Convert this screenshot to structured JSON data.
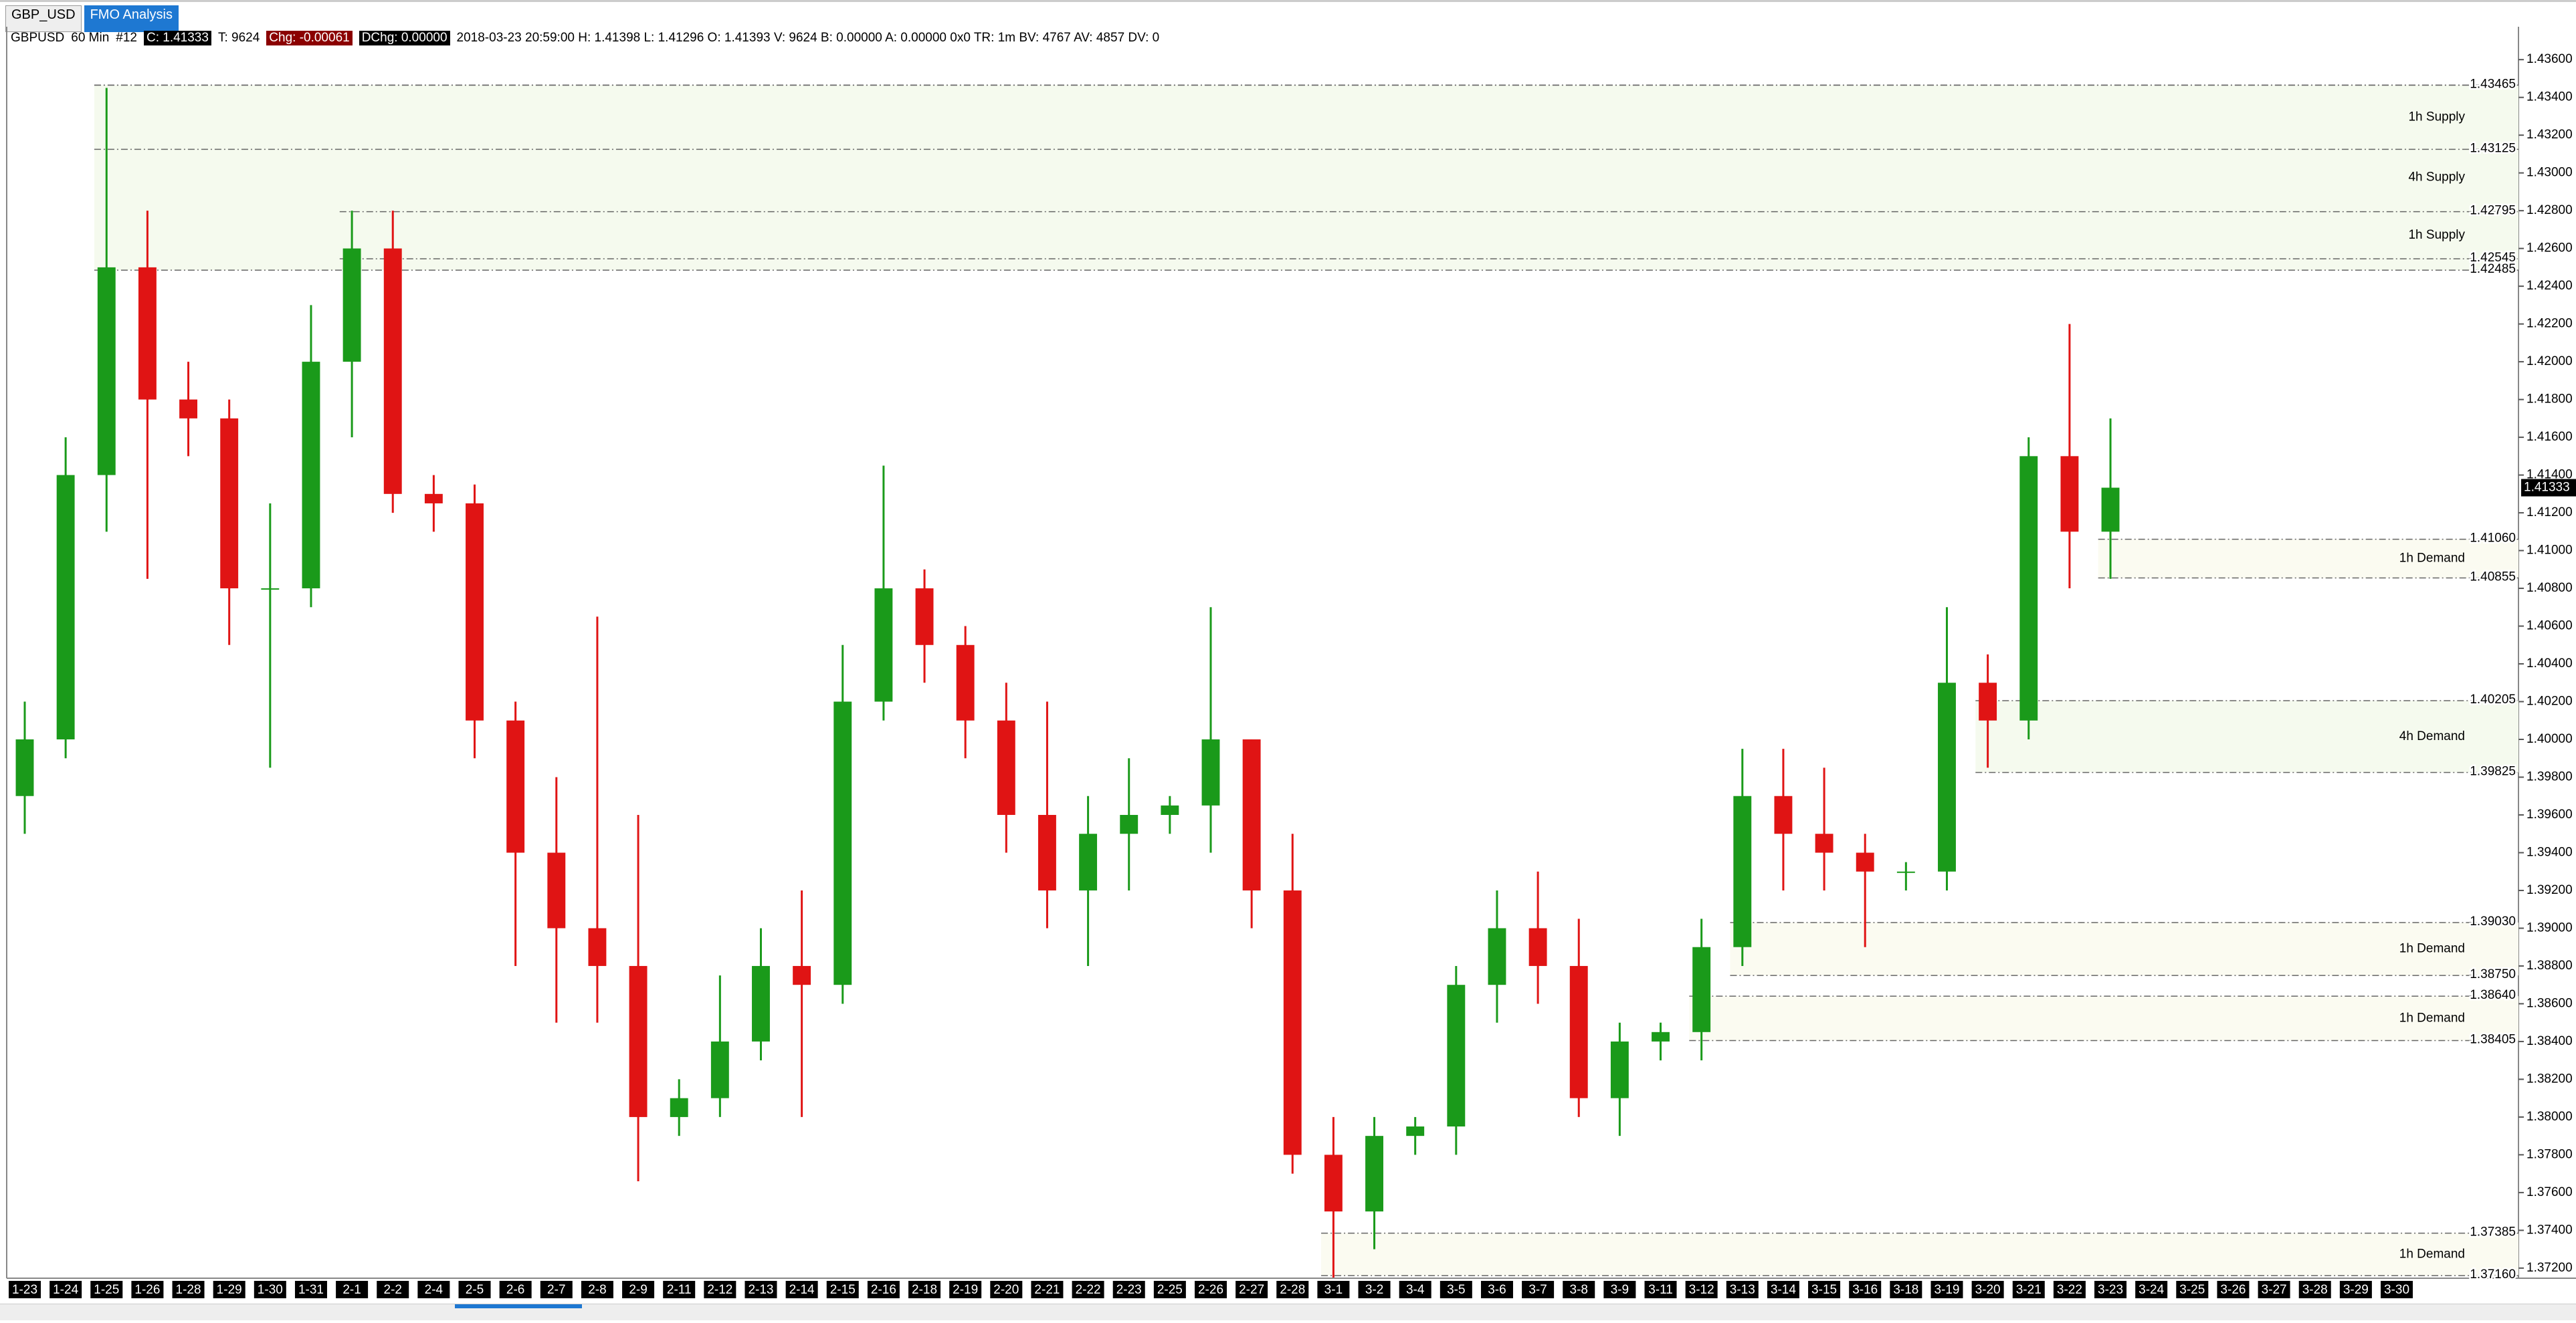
{
  "tabs": [
    "GBP_USD",
    "FMO Analysis"
  ],
  "header": {
    "symbol": "GBPUSD",
    "interval": "60 Min",
    "id": "#12",
    "close": "C: 1.41333",
    "ticks": "T: 9624",
    "chg": "Chg: -0.00061",
    "dchg": "DChg: 0.00000",
    "details": "2018-03-23 20:59:00 H: 1.41398 L: 1.41296 O: 1.41393 V: 9624 B: 0.00000 A: 0.00000 0x0 TR: 1m BV: 4767 AV: 4857 DV: 0"
  },
  "chart_data": {
    "type": "candlestick",
    "categories": [
      "1-23",
      "1-24",
      "1-25",
      "1-26",
      "1-28",
      "1-29",
      "1-30",
      "1-31",
      "2-1",
      "2-2",
      "2-4",
      "2-5",
      "2-6",
      "2-7",
      "2-8",
      "2-9",
      "2-11",
      "2-12",
      "2-13",
      "2-14",
      "2-15",
      "2-16",
      "2-18",
      "2-19",
      "2-20",
      "2-21",
      "2-22",
      "2-23",
      "2-25",
      "2-26",
      "2-27",
      "2-28",
      "3-1",
      "3-2",
      "3-4",
      "3-5",
      "3-6",
      "3-7",
      "3-8",
      "3-9",
      "3-11",
      "3-12",
      "3-13",
      "3-14",
      "3-15",
      "3-16",
      "3-18",
      "3-19",
      "3-20",
      "3-21",
      "3-22",
      "3-23",
      "3-24",
      "3-25",
      "3-26",
      "3-27",
      "3-28",
      "3-29",
      "3-30"
    ],
    "open": [
      1.397,
      1.4,
      1.414,
      1.425,
      1.418,
      1.417,
      1.408,
      1.408,
      1.42,
      1.426,
      1.413,
      1.4125,
      1.401,
      1.394,
      1.39,
      1.388,
      1.38,
      1.381,
      1.384,
      1.388,
      1.387,
      1.402,
      1.408,
      1.405,
      1.401,
      1.396,
      1.392,
      1.395,
      1.396,
      1.3965,
      1.4,
      1.392,
      1.378,
      1.375,
      1.379,
      1.3795,
      1.387,
      1.39,
      1.388,
      1.381,
      1.384,
      1.3845,
      1.389,
      1.397,
      1.395,
      1.394,
      1.393,
      1.393,
      1.403,
      1.401,
      1.415,
      1.411,
      null,
      null,
      null,
      null,
      null,
      null,
      null
    ],
    "high": [
      1.402,
      1.416,
      1.4345,
      1.428,
      1.42,
      1.418,
      1.4125,
      1.423,
      1.428,
      1.428,
      1.414,
      1.4135,
      1.402,
      1.398,
      1.4065,
      1.396,
      1.382,
      1.3875,
      1.39,
      1.392,
      1.405,
      1.4145,
      1.409,
      1.406,
      1.403,
      1.402,
      1.397,
      1.399,
      1.397,
      1.407,
      1.4,
      1.395,
      1.38,
      1.38,
      1.38,
      1.388,
      1.392,
      1.393,
      1.3905,
      1.385,
      1.385,
      1.3905,
      1.3995,
      1.3995,
      1.3985,
      1.395,
      1.3935,
      1.407,
      1.4045,
      1.416,
      1.422,
      1.417,
      null,
      null,
      null,
      null,
      null,
      null,
      null
    ],
    "low": [
      1.395,
      1.399,
      1.411,
      1.4085,
      1.415,
      1.405,
      1.3985,
      1.407,
      1.416,
      1.412,
      1.411,
      1.399,
      1.388,
      1.385,
      1.385,
      1.3766,
      1.379,
      1.38,
      1.383,
      1.38,
      1.386,
      1.401,
      1.403,
      1.399,
      1.394,
      1.39,
      1.388,
      1.392,
      1.395,
      1.394,
      1.39,
      1.377,
      1.3715,
      1.373,
      1.378,
      1.378,
      1.385,
      1.386,
      1.38,
      1.379,
      1.383,
      1.383,
      1.388,
      1.392,
      1.392,
      1.389,
      1.392,
      1.392,
      1.3985,
      1.4,
      1.408,
      1.4085,
      null,
      null,
      null,
      null,
      null,
      null,
      null
    ],
    "close": [
      1.4,
      1.414,
      1.425,
      1.418,
      1.417,
      1.408,
      1.408,
      1.42,
      1.426,
      1.413,
      1.4125,
      1.401,
      1.394,
      1.39,
      1.388,
      1.38,
      1.381,
      1.384,
      1.388,
      1.387,
      1.402,
      1.408,
      1.405,
      1.401,
      1.396,
      1.392,
      1.395,
      1.396,
      1.3965,
      1.4,
      1.392,
      1.378,
      1.375,
      1.379,
      1.3795,
      1.387,
      1.39,
      1.388,
      1.381,
      1.384,
      1.3845,
      1.389,
      1.397,
      1.395,
      1.394,
      1.393,
      1.393,
      1.403,
      1.401,
      1.415,
      1.411,
      1.41333,
      null,
      null,
      null,
      null,
      null,
      null,
      null
    ],
    "up_color": "#1a9a1a",
    "down_color": "#e01414",
    "ylim": [
      1.3715,
      1.4376
    ],
    "yticks": [
      {
        "value": 1.372,
        "label": "1.37200"
      },
      {
        "value": 1.374,
        "label": "1.37400"
      },
      {
        "value": 1.376,
        "label": "1.37600"
      },
      {
        "value": 1.378,
        "label": "1.37800"
      },
      {
        "value": 1.38,
        "label": "1.38000"
      },
      {
        "value": 1.382,
        "label": "1.38200"
      },
      {
        "value": 1.384,
        "label": "1.38400"
      },
      {
        "value": 1.386,
        "label": "1.38600"
      },
      {
        "value": 1.388,
        "label": "1.38800"
      },
      {
        "value": 1.39,
        "label": "1.39000"
      },
      {
        "value": 1.392,
        "label": "1.39200"
      },
      {
        "value": 1.394,
        "label": "1.39400"
      },
      {
        "value": 1.396,
        "label": "1.39600"
      },
      {
        "value": 1.398,
        "label": "1.39800"
      },
      {
        "value": 1.4,
        "label": "1.40000"
      },
      {
        "value": 1.402,
        "label": "1.40200"
      },
      {
        "value": 1.404,
        "label": "1.40400"
      },
      {
        "value": 1.406,
        "label": "1.40600"
      },
      {
        "value": 1.408,
        "label": "1.40800"
      },
      {
        "value": 1.41,
        "label": "1.41000"
      },
      {
        "value": 1.412,
        "label": "1.41200"
      },
      {
        "value": 1.414,
        "label": "1.41400"
      },
      {
        "value": 1.416,
        "label": "1.41600"
      },
      {
        "value": 1.418,
        "label": "1.41800"
      },
      {
        "value": 1.42,
        "label": "1.42000"
      },
      {
        "value": 1.422,
        "label": "1.42200"
      },
      {
        "value": 1.424,
        "label": "1.42400"
      },
      {
        "value": 1.426,
        "label": "1.42600"
      },
      {
        "value": 1.428,
        "label": "1.42800"
      },
      {
        "value": 1.43,
        "label": "1.43000"
      },
      {
        "value": 1.432,
        "label": "1.43200"
      },
      {
        "value": 1.434,
        "label": "1.43400"
      },
      {
        "value": 1.436,
        "label": "1.43600"
      }
    ],
    "grid": false,
    "zones": [
      {
        "name": "4h Supply",
        "top": {
          "value": 1.43465,
          "label": "1.43465"
        },
        "bottom": {
          "value": 1.42485,
          "label": "1.42485"
        },
        "start": "1-25",
        "color": "#f5faee"
      },
      {
        "name": "1h Supply",
        "top": {
          "value": 1.43465,
          "label": "1.43465"
        },
        "bottom": {
          "value": 1.43125,
          "label": "1.43125"
        },
        "start": "1-25",
        "color": "#f5faee"
      },
      {
        "name": "1h Supply",
        "top": {
          "value": 1.42795,
          "label": "1.42795"
        },
        "bottom": {
          "value": 1.42545,
          "label": "1.42545"
        },
        "start": "2-1",
        "color": "#f5faee"
      },
      {
        "name": "1h Demand",
        "top": {
          "value": 1.4106,
          "label": "1.41060"
        },
        "bottom": {
          "value": 1.40855,
          "label": "1.40855"
        },
        "start": "3-23",
        "color": "#fbfbf1"
      },
      {
        "name": "4h Demand",
        "top": {
          "value": 1.40205,
          "label": "1.40205"
        },
        "bottom": {
          "value": 1.39825,
          "label": "1.39825"
        },
        "start": "3-20",
        "color": "#f5faee"
      },
      {
        "name": "1h Demand",
        "top": {
          "value": 1.3903,
          "label": "1.39030"
        },
        "bottom": {
          "value": 1.3875,
          "label": "1.38750"
        },
        "start": "3-13",
        "color": "#fbfbf1"
      },
      {
        "name": "1h Demand",
        "top": {
          "value": 1.3864,
          "label": "1.38640"
        },
        "bottom": {
          "value": 1.38405,
          "label": "1.38405"
        },
        "start": "3-12",
        "color": "#fbfbf1"
      },
      {
        "name": "1h Demand",
        "top": {
          "value": 1.37385,
          "label": "1.37385"
        },
        "bottom": {
          "value": 1.3716,
          "label": "1.37160"
        },
        "start": "3-1",
        "color": "#fbfbf1"
      }
    ],
    "last_price": {
      "value": 1.41333,
      "label": "1.41333"
    }
  }
}
